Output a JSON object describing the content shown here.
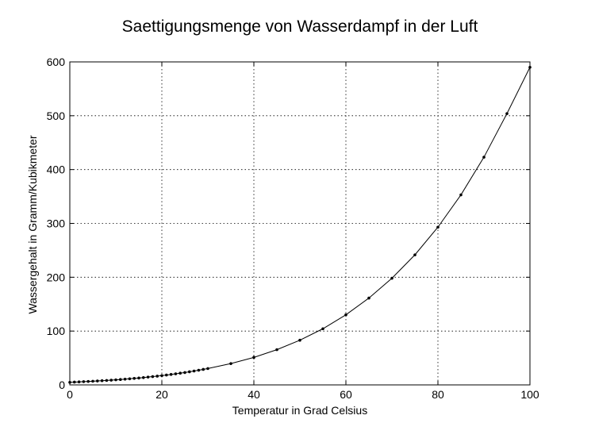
{
  "chart_data": {
    "type": "line",
    "title": "Saettigungsmenge von Wasserdampf in der Luft",
    "xlabel": "Temperatur in Grad Celsius",
    "ylabel": "Wassergehalt in Gramm/Kubikmeter",
    "xlim": [
      0,
      100
    ],
    "ylim": [
      0,
      600
    ],
    "xticks": [
      0,
      20,
      40,
      60,
      80,
      100
    ],
    "yticks": [
      0,
      100,
      200,
      300,
      400,
      500,
      600
    ],
    "grid": true,
    "series": [
      {
        "x": [
          0,
          1,
          2,
          3,
          4,
          5,
          6,
          7,
          8,
          9,
          10,
          11,
          12,
          13,
          14,
          15,
          16,
          17,
          18,
          19,
          20,
          21,
          22,
          23,
          24,
          25,
          26,
          27,
          28,
          29,
          30,
          35,
          40,
          45,
          50,
          55,
          60,
          65,
          70,
          75,
          80,
          85,
          90,
          95,
          100
        ],
        "y": [
          4.8,
          5.2,
          5.6,
          6.0,
          6.4,
          6.8,
          7.3,
          7.8,
          8.3,
          8.8,
          9.4,
          10.0,
          10.7,
          11.4,
          12.1,
          12.8,
          13.6,
          14.5,
          15.4,
          16.3,
          17.3,
          18.3,
          19.4,
          20.6,
          21.8,
          23.0,
          24.4,
          25.8,
          27.2,
          28.8,
          30.4,
          39.6,
          51.1,
          65.4,
          83.0,
          104.3,
          130.2,
          161.3,
          198.1,
          241.6,
          293.0,
          353.0,
          423.0,
          504.0,
          590.0
        ],
        "marker": "point",
        "color": "#000000"
      }
    ]
  }
}
